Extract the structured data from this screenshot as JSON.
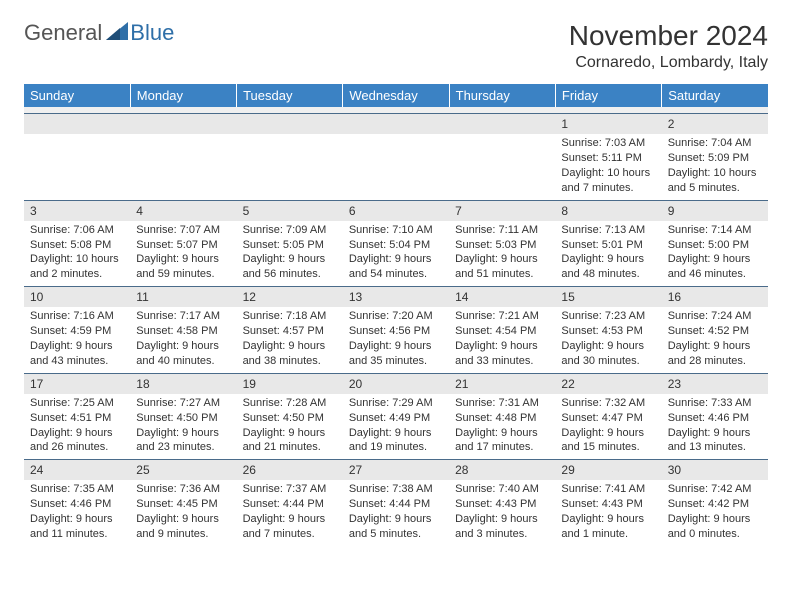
{
  "logo": {
    "general": "General",
    "blue": "Blue"
  },
  "header": {
    "month": "November 2024",
    "location": "Cornaredo, Lombardy, Italy"
  },
  "colors": {
    "header_bg": "#3b82c4",
    "header_text": "#ffffff",
    "day_num_bg": "#e8e8e8",
    "day_border": "#4a6b8a",
    "logo_blue": "#2f6fa8",
    "logo_gray": "#555555"
  },
  "weekdays": [
    "Sunday",
    "Monday",
    "Tuesday",
    "Wednesday",
    "Thursday",
    "Friday",
    "Saturday"
  ],
  "weeks": [
    [
      null,
      null,
      null,
      null,
      null,
      {
        "d": "1",
        "sr": "Sunrise: 7:03 AM",
        "ss": "Sunset: 5:11 PM",
        "dl1": "Daylight: 10 hours",
        "dl2": "and 7 minutes."
      },
      {
        "d": "2",
        "sr": "Sunrise: 7:04 AM",
        "ss": "Sunset: 5:09 PM",
        "dl1": "Daylight: 10 hours",
        "dl2": "and 5 minutes."
      }
    ],
    [
      {
        "d": "3",
        "sr": "Sunrise: 7:06 AM",
        "ss": "Sunset: 5:08 PM",
        "dl1": "Daylight: 10 hours",
        "dl2": "and 2 minutes."
      },
      {
        "d": "4",
        "sr": "Sunrise: 7:07 AM",
        "ss": "Sunset: 5:07 PM",
        "dl1": "Daylight: 9 hours",
        "dl2": "and 59 minutes."
      },
      {
        "d": "5",
        "sr": "Sunrise: 7:09 AM",
        "ss": "Sunset: 5:05 PM",
        "dl1": "Daylight: 9 hours",
        "dl2": "and 56 minutes."
      },
      {
        "d": "6",
        "sr": "Sunrise: 7:10 AM",
        "ss": "Sunset: 5:04 PM",
        "dl1": "Daylight: 9 hours",
        "dl2": "and 54 minutes."
      },
      {
        "d": "7",
        "sr": "Sunrise: 7:11 AM",
        "ss": "Sunset: 5:03 PM",
        "dl1": "Daylight: 9 hours",
        "dl2": "and 51 minutes."
      },
      {
        "d": "8",
        "sr": "Sunrise: 7:13 AM",
        "ss": "Sunset: 5:01 PM",
        "dl1": "Daylight: 9 hours",
        "dl2": "and 48 minutes."
      },
      {
        "d": "9",
        "sr": "Sunrise: 7:14 AM",
        "ss": "Sunset: 5:00 PM",
        "dl1": "Daylight: 9 hours",
        "dl2": "and 46 minutes."
      }
    ],
    [
      {
        "d": "10",
        "sr": "Sunrise: 7:16 AM",
        "ss": "Sunset: 4:59 PM",
        "dl1": "Daylight: 9 hours",
        "dl2": "and 43 minutes."
      },
      {
        "d": "11",
        "sr": "Sunrise: 7:17 AM",
        "ss": "Sunset: 4:58 PM",
        "dl1": "Daylight: 9 hours",
        "dl2": "and 40 minutes."
      },
      {
        "d": "12",
        "sr": "Sunrise: 7:18 AM",
        "ss": "Sunset: 4:57 PM",
        "dl1": "Daylight: 9 hours",
        "dl2": "and 38 minutes."
      },
      {
        "d": "13",
        "sr": "Sunrise: 7:20 AM",
        "ss": "Sunset: 4:56 PM",
        "dl1": "Daylight: 9 hours",
        "dl2": "and 35 minutes."
      },
      {
        "d": "14",
        "sr": "Sunrise: 7:21 AM",
        "ss": "Sunset: 4:54 PM",
        "dl1": "Daylight: 9 hours",
        "dl2": "and 33 minutes."
      },
      {
        "d": "15",
        "sr": "Sunrise: 7:23 AM",
        "ss": "Sunset: 4:53 PM",
        "dl1": "Daylight: 9 hours",
        "dl2": "and 30 minutes."
      },
      {
        "d": "16",
        "sr": "Sunrise: 7:24 AM",
        "ss": "Sunset: 4:52 PM",
        "dl1": "Daylight: 9 hours",
        "dl2": "and 28 minutes."
      }
    ],
    [
      {
        "d": "17",
        "sr": "Sunrise: 7:25 AM",
        "ss": "Sunset: 4:51 PM",
        "dl1": "Daylight: 9 hours",
        "dl2": "and 26 minutes."
      },
      {
        "d": "18",
        "sr": "Sunrise: 7:27 AM",
        "ss": "Sunset: 4:50 PM",
        "dl1": "Daylight: 9 hours",
        "dl2": "and 23 minutes."
      },
      {
        "d": "19",
        "sr": "Sunrise: 7:28 AM",
        "ss": "Sunset: 4:50 PM",
        "dl1": "Daylight: 9 hours",
        "dl2": "and 21 minutes."
      },
      {
        "d": "20",
        "sr": "Sunrise: 7:29 AM",
        "ss": "Sunset: 4:49 PM",
        "dl1": "Daylight: 9 hours",
        "dl2": "and 19 minutes."
      },
      {
        "d": "21",
        "sr": "Sunrise: 7:31 AM",
        "ss": "Sunset: 4:48 PM",
        "dl1": "Daylight: 9 hours",
        "dl2": "and 17 minutes."
      },
      {
        "d": "22",
        "sr": "Sunrise: 7:32 AM",
        "ss": "Sunset: 4:47 PM",
        "dl1": "Daylight: 9 hours",
        "dl2": "and 15 minutes."
      },
      {
        "d": "23",
        "sr": "Sunrise: 7:33 AM",
        "ss": "Sunset: 4:46 PM",
        "dl1": "Daylight: 9 hours",
        "dl2": "and 13 minutes."
      }
    ],
    [
      {
        "d": "24",
        "sr": "Sunrise: 7:35 AM",
        "ss": "Sunset: 4:46 PM",
        "dl1": "Daylight: 9 hours",
        "dl2": "and 11 minutes."
      },
      {
        "d": "25",
        "sr": "Sunrise: 7:36 AM",
        "ss": "Sunset: 4:45 PM",
        "dl1": "Daylight: 9 hours",
        "dl2": "and 9 minutes."
      },
      {
        "d": "26",
        "sr": "Sunrise: 7:37 AM",
        "ss": "Sunset: 4:44 PM",
        "dl1": "Daylight: 9 hours",
        "dl2": "and 7 minutes."
      },
      {
        "d": "27",
        "sr": "Sunrise: 7:38 AM",
        "ss": "Sunset: 4:44 PM",
        "dl1": "Daylight: 9 hours",
        "dl2": "and 5 minutes."
      },
      {
        "d": "28",
        "sr": "Sunrise: 7:40 AM",
        "ss": "Sunset: 4:43 PM",
        "dl1": "Daylight: 9 hours",
        "dl2": "and 3 minutes."
      },
      {
        "d": "29",
        "sr": "Sunrise: 7:41 AM",
        "ss": "Sunset: 4:43 PM",
        "dl1": "Daylight: 9 hours",
        "dl2": "and 1 minute."
      },
      {
        "d": "30",
        "sr": "Sunrise: 7:42 AM",
        "ss": "Sunset: 4:42 PM",
        "dl1": "Daylight: 9 hours",
        "dl2": "and 0 minutes."
      }
    ]
  ]
}
